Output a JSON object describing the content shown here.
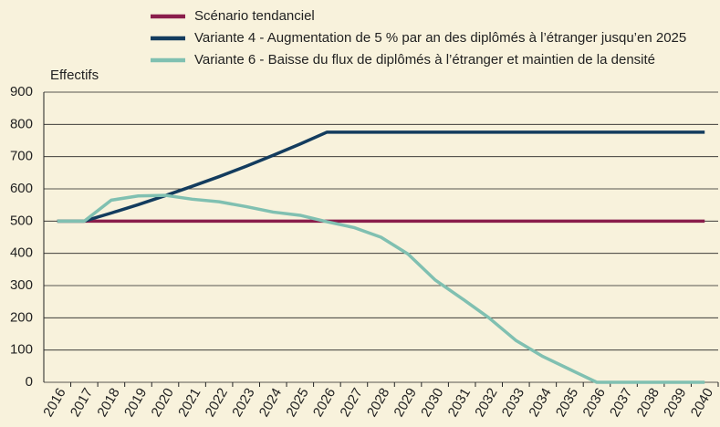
{
  "chart_data": {
    "type": "line",
    "y_label": "Effectifs",
    "categories": [
      "2016",
      "2017",
      "2018",
      "2019",
      "2020",
      "2021",
      "2022",
      "2023",
      "2024",
      "2025",
      "2026",
      "2027",
      "2028",
      "2029",
      "2030",
      "2031",
      "2032",
      "2033",
      "2034",
      "2035",
      "2036",
      "2037",
      "2038",
      "2039",
      "2040"
    ],
    "series": [
      {
        "name": "Scénario tendanciel",
        "color": "#8a1d4b",
        "values": [
          500,
          500,
          500,
          500,
          500,
          500,
          500,
          500,
          500,
          500,
          500,
          500,
          500,
          500,
          500,
          500,
          500,
          500,
          500,
          500,
          500,
          500,
          500,
          500,
          500
        ]
      },
      {
        "name": "Variante 4  - Augmentation de 5 % par an des  diplômés à l’étranger jusqu’en 2025",
        "color": "#133c5e",
        "values": [
          500,
          500,
          525,
          551,
          579,
          608,
          638,
          670,
          704,
          739,
          776,
          776,
          776,
          776,
          776,
          776,
          776,
          776,
          776,
          776,
          776,
          776,
          776,
          776,
          776
        ]
      },
      {
        "name": "Variante 6  - Baisse du flux de diplômés à l’étranger et maintien de la densité",
        "color": "#80c0b1",
        "values": [
          500,
          500,
          565,
          578,
          580,
          568,
          560,
          545,
          528,
          518,
          498,
          480,
          450,
          398,
          318,
          260,
          200,
          130,
          80,
          40,
          0,
          0,
          0,
          0,
          0
        ]
      }
    ],
    "ylim": [
      0,
      900
    ],
    "yticks": [
      0,
      100,
      200,
      300,
      400,
      500,
      600,
      700,
      800,
      900
    ],
    "grid": true,
    "legend": "top"
  }
}
